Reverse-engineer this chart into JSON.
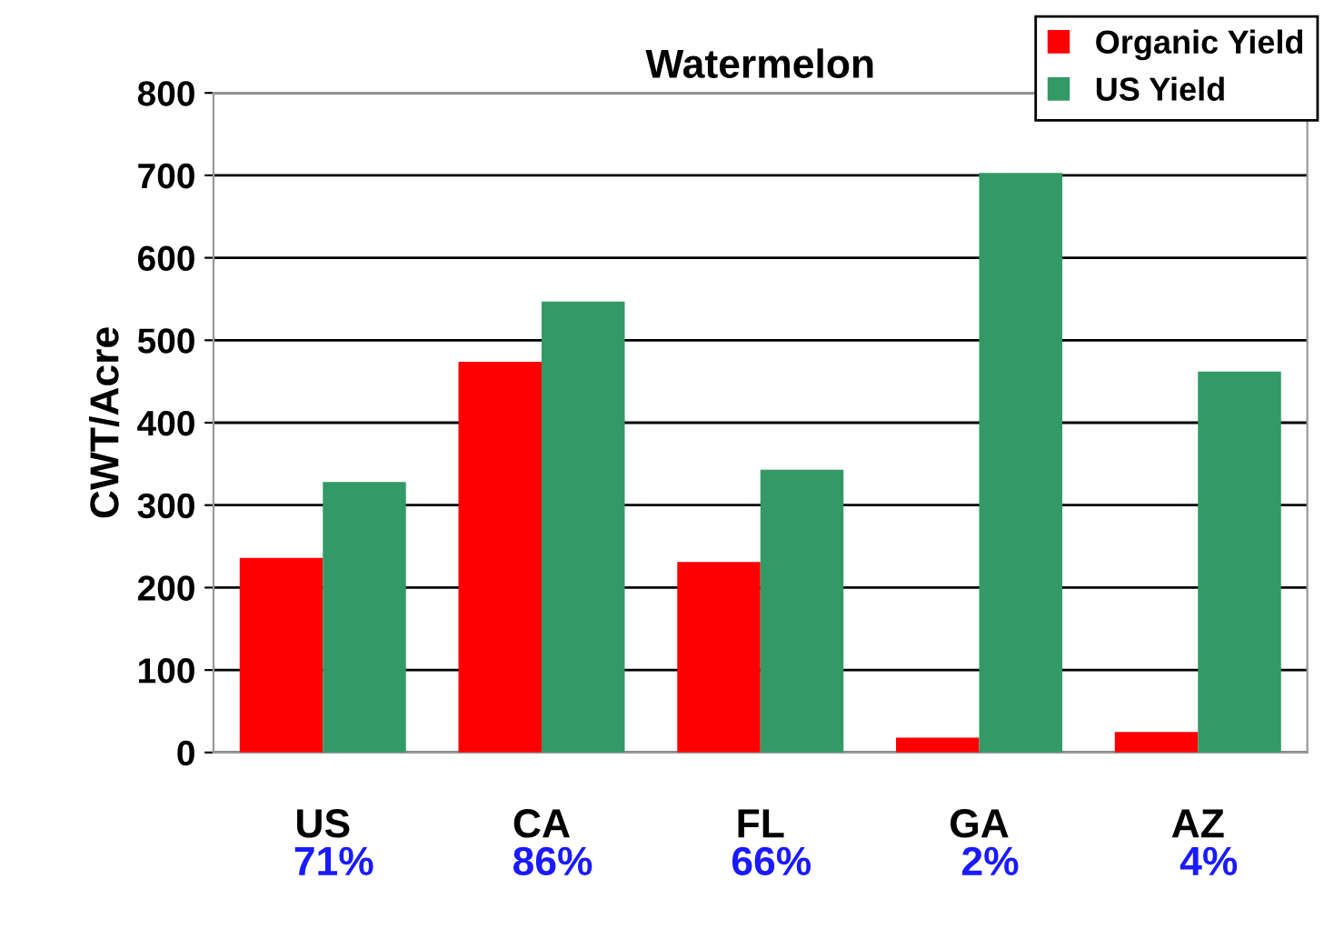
{
  "chart_data": {
    "type": "bar",
    "title": "Watermelon",
    "ylabel": "CWT/Acre",
    "categories": [
      "US",
      "CA",
      "FL",
      "GA",
      "AZ"
    ],
    "series": [
      {
        "name": "Organic Yield",
        "color": "#ff0000",
        "values": [
          236,
          474,
          231,
          18,
          25
        ]
      },
      {
        "name": "US Yield",
        "color": "#339966",
        "values": [
          328,
          547,
          343,
          703,
          462
        ]
      }
    ],
    "ylim": [
      0,
      800
    ],
    "yticks": [
      0,
      100,
      200,
      300,
      400,
      500,
      600,
      700,
      800
    ],
    "grid": "y",
    "legend": "top right",
    "annotations": [
      "71%",
      "86%",
      "66%",
      "2%",
      "4%"
    ]
  }
}
